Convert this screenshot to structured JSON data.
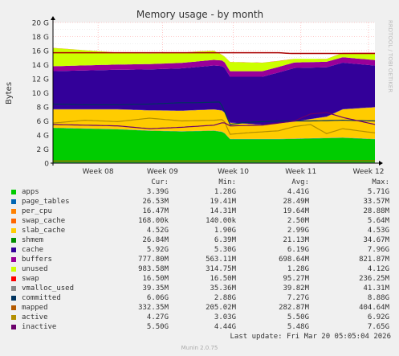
{
  "chart_data": {
    "type": "area",
    "title": "Memory usage - by month",
    "ylabel": "Bytes",
    "side_label": "RRDTOOL / TOBI OETIKER",
    "ylim": [
      0,
      20
    ],
    "y_unit": "G",
    "y_ticks": [
      "0",
      "2 G",
      "4 G",
      "6 G",
      "8 G",
      "10 G",
      "12 G",
      "14 G",
      "16 G",
      "18 G",
      "20 G"
    ],
    "xlim": [
      0,
      1
    ],
    "x_ticks": [
      {
        "label": "Week 08",
        "pos": 0.14
      },
      {
        "label": "Week 09",
        "pos": 0.34
      },
      {
        "label": "Week 10",
        "pos": 0.56
      },
      {
        "label": "Week 11",
        "pos": 0.77
      },
      {
        "label": "Week 12",
        "pos": 0.98
      }
    ],
    "grid": true,
    "series": [
      {
        "name": "apps",
        "color": "#00cc00",
        "kind": "stack",
        "values": [
          [
            0,
            5.0
          ],
          [
            0.1,
            4.9
          ],
          [
            0.2,
            4.8
          ],
          [
            0.3,
            4.6
          ],
          [
            0.4,
            4.5
          ],
          [
            0.5,
            4.6
          ],
          [
            0.53,
            4.4
          ],
          [
            0.55,
            3.4
          ],
          [
            0.6,
            3.4
          ],
          [
            0.7,
            3.4
          ],
          [
            0.8,
            3.5
          ],
          [
            0.9,
            3.6
          ],
          [
            1,
            3.4
          ]
        ]
      },
      {
        "name": "page_tables",
        "color": "#0066b3",
        "kind": "stack",
        "values": [
          [
            0,
            0.03
          ],
          [
            1,
            0.03
          ]
        ]
      },
      {
        "name": "per_cpu",
        "color": "#ff8000",
        "kind": "stack",
        "values": [
          [
            0,
            0.02
          ],
          [
            1,
            0.02
          ]
        ]
      },
      {
        "name": "swap_cache",
        "color": "#ffcc00",
        "kind": "stack",
        "values": [
          [
            0,
            0.0
          ],
          [
            1,
            0.0
          ]
        ]
      },
      {
        "name": "slab_cache",
        "color": "#ffcc00",
        "kind": "stack",
        "values": [
          [
            0,
            2.6
          ],
          [
            0.2,
            2.8
          ],
          [
            0.4,
            2.9
          ],
          [
            0.53,
            3.0
          ],
          [
            0.55,
            2.3
          ],
          [
            0.65,
            2.0
          ],
          [
            0.75,
            2.4
          ],
          [
            0.85,
            3.0
          ],
          [
            0.9,
            4.0
          ],
          [
            1,
            4.5
          ]
        ]
      },
      {
        "name": "shmem",
        "color": "#330099",
        "kind": "stack",
        "values": [
          [
            0,
            0.03
          ],
          [
            1,
            0.03
          ]
        ]
      },
      {
        "name": "cache",
        "color": "#330099",
        "kind": "stack",
        "values": [
          [
            0,
            5.4
          ],
          [
            0.2,
            5.6
          ],
          [
            0.4,
            6.0
          ],
          [
            0.53,
            6.3
          ],
          [
            0.55,
            6.5
          ],
          [
            0.65,
            6.8
          ],
          [
            0.75,
            7.6
          ],
          [
            0.85,
            7.0
          ],
          [
            0.9,
            6.6
          ],
          [
            1,
            5.9
          ]
        ]
      },
      {
        "name": "buffers",
        "color": "#990099",
        "kind": "stack",
        "values": [
          [
            0,
            0.7
          ],
          [
            0.5,
            0.8
          ],
          [
            1,
            0.78
          ]
        ]
      },
      {
        "name": "unused",
        "color": "#ccff00",
        "kind": "stack",
        "values": [
          [
            0,
            2.6
          ],
          [
            0.2,
            1.7
          ],
          [
            0.3,
            1.5
          ],
          [
            0.45,
            1.4
          ],
          [
            0.5,
            1.3
          ],
          [
            0.53,
            0.7
          ],
          [
            0.55,
            1.3
          ],
          [
            0.65,
            1.2
          ],
          [
            0.75,
            0.5
          ],
          [
            0.85,
            0.4
          ],
          [
            1,
            1.0
          ]
        ]
      },
      {
        "name": "swap",
        "color": "#ff0000",
        "kind": "stack",
        "values": [
          [
            0,
            0.01
          ],
          [
            1,
            0.02
          ]
        ]
      },
      {
        "name": "vmalloc_used",
        "color": "#888888",
        "kind": "line",
        "values": [
          [
            0,
            0.04
          ],
          [
            1,
            0.04
          ]
        ]
      },
      {
        "name": "committed",
        "color": "#00335f",
        "kind": "line",
        "values": [
          [
            0,
            8.4
          ],
          [
            0.1,
            8.3
          ],
          [
            0.2,
            8.3
          ],
          [
            0.3,
            8.4
          ],
          [
            0.4,
            8.6
          ],
          [
            0.45,
            8.6
          ],
          [
            0.52,
            8.7
          ],
          [
            0.55,
            5.5
          ],
          [
            0.6,
            5.8
          ],
          [
            0.7,
            6.0
          ],
          [
            0.8,
            6.0
          ],
          [
            0.9,
            6.1
          ],
          [
            1,
            6.0
          ]
        ]
      },
      {
        "name": "mapped",
        "color": "#b35a00",
        "kind": "line",
        "values": [
          [
            0,
            0.3
          ],
          [
            1,
            0.33
          ]
        ]
      },
      {
        "name": "active",
        "color": "#b38f00",
        "kind": "line",
        "values": [
          [
            0,
            5.7
          ],
          [
            0.1,
            6.1
          ],
          [
            0.2,
            5.9
          ],
          [
            0.3,
            6.4
          ],
          [
            0.4,
            6.0
          ],
          [
            0.5,
            6.1
          ],
          [
            0.53,
            6.2
          ],
          [
            0.55,
            4.1
          ],
          [
            0.6,
            4.3
          ],
          [
            0.7,
            4.6
          ],
          [
            0.75,
            5.2
          ],
          [
            0.8,
            5.5
          ],
          [
            0.85,
            4.2
          ],
          [
            0.9,
            4.9
          ],
          [
            1,
            4.3
          ]
        ]
      },
      {
        "name": "inactive",
        "color": "#6b006b",
        "kind": "line",
        "values": [
          [
            0,
            5.5
          ],
          [
            0.1,
            5.4
          ],
          [
            0.2,
            5.3
          ],
          [
            0.3,
            4.9
          ],
          [
            0.4,
            5.1
          ],
          [
            0.5,
            5.4
          ],
          [
            0.53,
            5.8
          ],
          [
            0.55,
            5.3
          ],
          [
            0.65,
            5.4
          ],
          [
            0.75,
            6.0
          ],
          [
            0.8,
            7.0
          ],
          [
            0.85,
            7.2
          ],
          [
            0.9,
            6.5
          ],
          [
            1,
            5.5
          ]
        ]
      }
    ],
    "total_line": {
      "color": "#aa0000",
      "values": [
        [
          0,
          15.7
        ],
        [
          0.7,
          15.7
        ],
        [
          0.74,
          15.6
        ],
        [
          1,
          15.6
        ]
      ]
    }
  },
  "legend": {
    "headers": {
      "cur": "Cur:",
      "min": "Min:",
      "avg": "Avg:",
      "max": "Max:"
    },
    "rows": [
      {
        "name": "apps",
        "color": "#00cc00",
        "cur": "3.39G",
        "min": "1.28G",
        "avg": "4.41G",
        "max": "5.71G"
      },
      {
        "name": "page_tables",
        "color": "#0066b3",
        "cur": "26.53M",
        "min": "19.41M",
        "avg": "28.49M",
        "max": "33.57M"
      },
      {
        "name": "per_cpu",
        "color": "#ff8000",
        "cur": "16.47M",
        "min": "14.31M",
        "avg": "19.64M",
        "max": "28.88M"
      },
      {
        "name": "swap_cache",
        "color": "#ff6600",
        "cur": "168.00k",
        "min": "140.00k",
        "avg": "2.50M",
        "max": "5.64M"
      },
      {
        "name": "slab_cache",
        "color": "#ffcc00",
        "cur": "4.52G",
        "min": "1.90G",
        "avg": "2.99G",
        "max": "4.53G"
      },
      {
        "name": "shmem",
        "color": "#008f00",
        "cur": "26.84M",
        "min": "6.39M",
        "avg": "21.13M",
        "max": "34.67M"
      },
      {
        "name": "cache",
        "color": "#330099",
        "cur": "5.92G",
        "min": "5.30G",
        "avg": "6.19G",
        "max": "7.96G"
      },
      {
        "name": "buffers",
        "color": "#990099",
        "cur": "777.80M",
        "min": "563.11M",
        "avg": "698.64M",
        "max": "821.87M"
      },
      {
        "name": "unused",
        "color": "#ccff00",
        "cur": "983.58M",
        "min": "314.75M",
        "avg": "1.28G",
        "max": "4.12G"
      },
      {
        "name": "swap",
        "color": "#ff0000",
        "cur": "16.50M",
        "min": "16.50M",
        "avg": "95.27M",
        "max": "236.25M"
      },
      {
        "name": "vmalloc_used",
        "color": "#888888",
        "cur": "39.35M",
        "min": "35.36M",
        "avg": "39.82M",
        "max": "41.31M"
      },
      {
        "name": "committed",
        "color": "#00335f",
        "cur": "6.06G",
        "min": "2.88G",
        "avg": "7.27G",
        "max": "8.88G"
      },
      {
        "name": "mapped",
        "color": "#b35a00",
        "cur": "332.35M",
        "min": "205.02M",
        "avg": "282.87M",
        "max": "404.64M"
      },
      {
        "name": "active",
        "color": "#b38f00",
        "cur": "4.27G",
        "min": "3.03G",
        "avg": "5.50G",
        "max": "6.92G"
      },
      {
        "name": "inactive",
        "color": "#6b006b",
        "cur": "5.50G",
        "min": "4.44G",
        "avg": "5.48G",
        "max": "7.65G"
      }
    ]
  },
  "footer": {
    "last_update": "Last update: Fri Mar 20 05:05:04 2026",
    "munin": "Munin 2.0.75"
  }
}
